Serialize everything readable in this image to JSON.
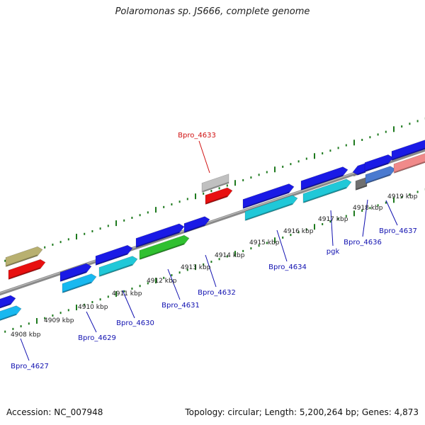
{
  "title": "Polaromonas sp. JS666, complete genome",
  "footer": {
    "accession": "Accession: NC_007948",
    "summary": "Topology: circular; Length: 5,200,264 bp; Genes: 4,873"
  },
  "colors": {
    "backbone": "#8a8a8a",
    "ticks": "#1e7a1e",
    "gene_label": "#1010b0",
    "highlight_label": "#d01010",
    "blue": "#1a1ae6",
    "cyan": "#20c8d8",
    "light_blue": "#18b8f0",
    "green": "#30c030",
    "olive": "#b8b070",
    "red": "#e81010",
    "gray": "#c0c0c0",
    "dark_gray": "#707070",
    "steel": "#4a7ad0",
    "salmon": "#f08a8a"
  },
  "kbp_labels": [
    "4908 kbp",
    "4909 kbp",
    "4910 kbp",
    "4911 kbp",
    "4912 kbp",
    "4913 kbp",
    "4914 kbp",
    "4915 kbp",
    "4916 kbp",
    "4917 kbp",
    "4918 kbp",
    "4919 kbp"
  ],
  "gene_labels": [
    {
      "text": "Bpro_4633",
      "highlight": true
    },
    {
      "text": "Bpro_4627",
      "highlight": false
    },
    {
      "text": "Bpro_4629",
      "highlight": false
    },
    {
      "text": "Bpro_4630",
      "highlight": false
    },
    {
      "text": "Bpro_4631",
      "highlight": false
    },
    {
      "text": "Bpro_4632",
      "highlight": false
    },
    {
      "text": "Bpro_4634",
      "highlight": false
    },
    {
      "text": "pgk",
      "highlight": false
    },
    {
      "text": "Bpro_4636",
      "highlight": false
    },
    {
      "text": "Bpro_4637",
      "highlight": false
    }
  ]
}
